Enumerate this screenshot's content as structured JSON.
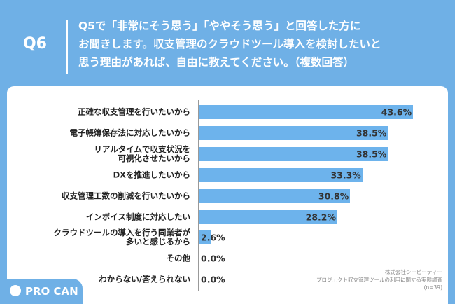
{
  "header": {
    "label": "Q6",
    "question": "Q5で「非常にそう思う」「ややそう思う」と回答した方に\nお聞きします。収支管理のクラウドツール導入を検討したいと\n思う理由があれば、自由に教えてください。（複数回答）"
  },
  "chart_data": {
    "type": "hbar",
    "categories": [
      "正確な収支管理を行いたいから",
      "電子帳簿保存法に対応したいから",
      "リアルタイムで収支状況を\n可視化させたいから",
      "DXを推進したいから",
      "収支管理工数の削減を行いたいから",
      "インボイス制度に対応したい",
      "クラウドツールの導入を行う同業者が\n多いと感じるから",
      "その他",
      "わからない/答えられない"
    ],
    "values": [
      43.6,
      38.5,
      38.5,
      33.3,
      30.8,
      28.2,
      2.6,
      0.0,
      0.0
    ],
    "value_labels": [
      "43.6%",
      "38.5%",
      "38.5%",
      "33.3%",
      "30.8%",
      "28.2%",
      "2.6%",
      "0.0%",
      "0.0%"
    ],
    "color": "#6db3ec",
    "xlim": [
      0,
      45
    ]
  },
  "source": [
    "株式会社シーピーティー",
    "プロジェクト収支管理ツールの利用に関する実態調査",
    "(n=39)"
  ],
  "logo": "PRO CAN"
}
